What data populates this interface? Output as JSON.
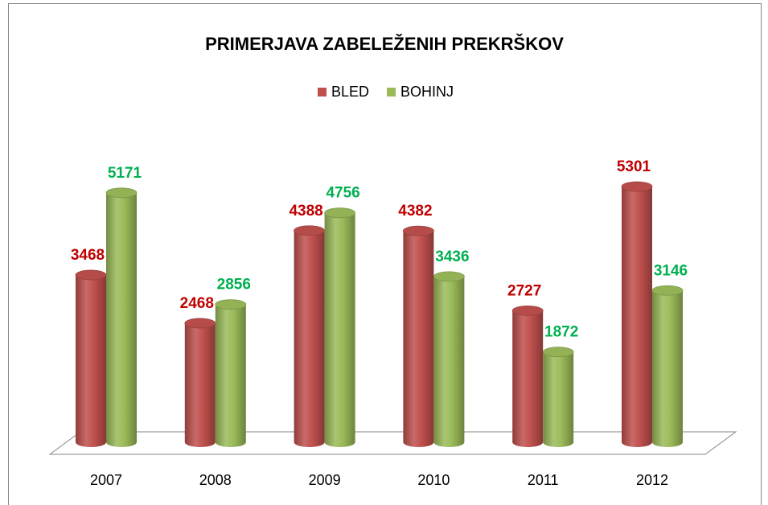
{
  "chart_data": {
    "type": "bar3d",
    "title": "PRIMERJAVA ZABELEŽENIH PREKRŠKOV",
    "categories": [
      "2007",
      "2008",
      "2009",
      "2010",
      "2011",
      "2012"
    ],
    "series": [
      {
        "name": "BLED",
        "color": "#c0504d",
        "label_color": "#c00000",
        "values": [
          3468,
          2468,
          4388,
          4382,
          2727,
          5301
        ]
      },
      {
        "name": "BOHINJ",
        "color": "#9bbb59",
        "label_color": "#00b050",
        "values": [
          5171,
          2856,
          4756,
          3436,
          1872,
          3146
        ]
      }
    ],
    "legend": "top"
  }
}
